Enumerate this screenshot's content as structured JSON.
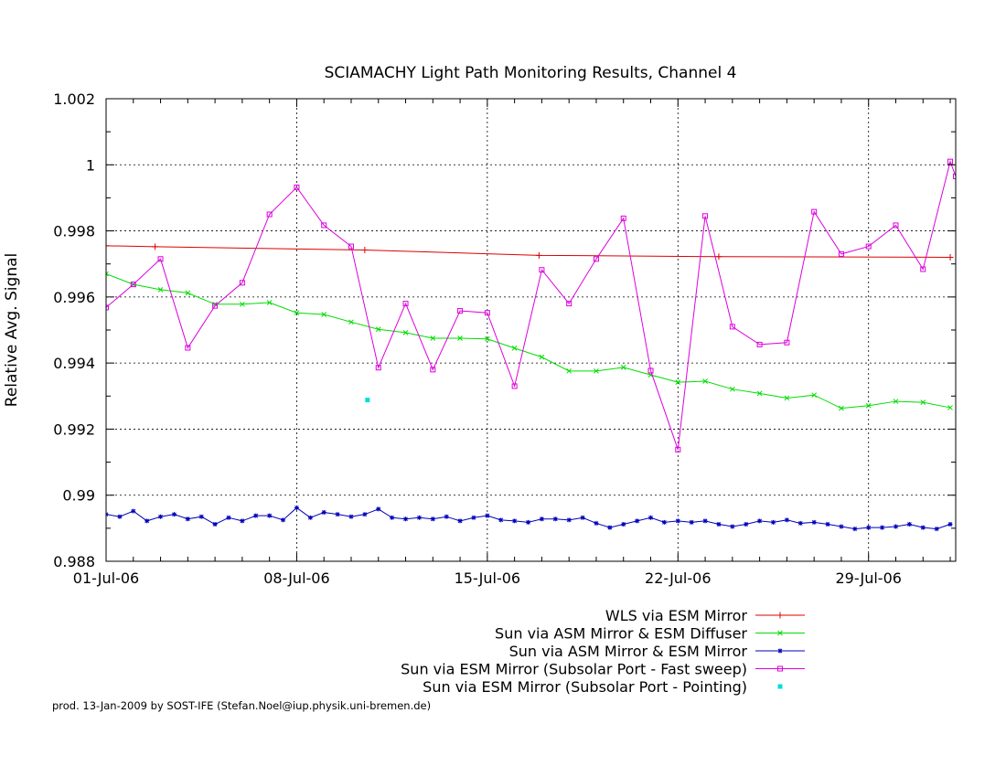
{
  "footer": "prod. 13-Jan-2009 by SOST-IFE (Stefan.Noel@iup.physik.uni-bremen.de)",
  "chart_data": {
    "type": "line",
    "title": "SCIAMACHY Light Path Monitoring Results, Channel 4",
    "xlabel": "",
    "ylabel": "Relative Avg. Signal",
    "x_unit": "day of July 2006 (1 = 01-Jul-06)",
    "xlim": [
      1,
      32.2
    ],
    "ylim": [
      0.988,
      1.002
    ],
    "grid": true,
    "legend_position": "below-plot-right",
    "x_ticks": [
      {
        "value": 1,
        "label": "01-Jul-06"
      },
      {
        "value": 8,
        "label": "08-Jul-06"
      },
      {
        "value": 15,
        "label": "15-Jul-06"
      },
      {
        "value": 22,
        "label": "22-Jul-06"
      },
      {
        "value": 29,
        "label": "29-Jul-06"
      }
    ],
    "y_ticks": [
      {
        "value": 0.988,
        "label": "0.988"
      },
      {
        "value": 0.99,
        "label": "0.99"
      },
      {
        "value": 0.992,
        "label": "0.992"
      },
      {
        "value": 0.994,
        "label": "0.994"
      },
      {
        "value": 0.996,
        "label": "0.996"
      },
      {
        "value": 0.998,
        "label": "0.998"
      },
      {
        "value": 1.0,
        "label": "1"
      },
      {
        "value": 1.002,
        "label": "1.002"
      }
    ],
    "series": [
      {
        "name": "WLS via ESM Mirror",
        "color": "#dd0000",
        "marker": "plus",
        "x": [
          1,
          2.8,
          10.5,
          16.9,
          23.5,
          32.0
        ],
        "y": [
          0.99755,
          0.99752,
          0.99742,
          0.99726,
          0.99722,
          0.9972
        ]
      },
      {
        "name": "Sun via ASM Mirror & ESM Diffuser",
        "color": "#00dd00",
        "marker": "cross",
        "x": [
          1,
          2,
          3,
          4,
          5,
          6,
          7,
          8,
          9,
          10,
          11,
          12,
          13,
          14,
          15,
          16,
          17,
          18,
          19,
          20,
          21,
          22,
          23,
          24,
          25,
          26,
          27,
          28,
          29,
          30,
          31,
          32
        ],
        "y": [
          0.9967,
          0.99638,
          0.99622,
          0.99612,
          0.99578,
          0.99578,
          0.99583,
          0.99552,
          0.99547,
          0.99524,
          0.99502,
          0.99492,
          0.99475,
          0.99475,
          0.99473,
          0.99445,
          0.99418,
          0.99376,
          0.99376,
          0.99387,
          0.99364,
          0.99342,
          0.99345,
          0.99321,
          0.99308,
          0.99294,
          0.99303,
          0.99263,
          0.99271,
          0.99284,
          0.99281,
          0.99265
        ]
      },
      {
        "name": "Sun via ASM Mirror & ESM Mirror",
        "color": "#0000bb",
        "marker": "star",
        "x": [
          1,
          1.5,
          2,
          2.5,
          3,
          3.5,
          4,
          4.5,
          5,
          5.5,
          6,
          6.5,
          7,
          7.5,
          8,
          8.5,
          9,
          9.5,
          10,
          10.5,
          11,
          11.5,
          12,
          12.5,
          13,
          13.5,
          14,
          14.5,
          15,
          15.5,
          16,
          16.5,
          17,
          17.5,
          18,
          18.5,
          19,
          19.5,
          20,
          20.5,
          21,
          21.5,
          22,
          22.5,
          23,
          23.5,
          24,
          24.5,
          25,
          25.5,
          26,
          26.5,
          27,
          27.5,
          28,
          28.5,
          29,
          29.5,
          30,
          30.5,
          31,
          31.5,
          32
        ],
        "y": [
          0.98942,
          0.98935,
          0.98952,
          0.98922,
          0.98935,
          0.98942,
          0.98928,
          0.98935,
          0.98912,
          0.98932,
          0.98922,
          0.98938,
          0.98938,
          0.98925,
          0.98962,
          0.98932,
          0.98948,
          0.98942,
          0.98935,
          0.98942,
          0.98958,
          0.98932,
          0.98928,
          0.98932,
          0.98928,
          0.98935,
          0.98922,
          0.98932,
          0.98938,
          0.98925,
          0.98922,
          0.98918,
          0.98928,
          0.98928,
          0.98925,
          0.98932,
          0.98915,
          0.98902,
          0.98912,
          0.98922,
          0.98932,
          0.98918,
          0.98922,
          0.98918,
          0.98922,
          0.98912,
          0.98905,
          0.98912,
          0.98922,
          0.98918,
          0.98925,
          0.98915,
          0.98918,
          0.98912,
          0.98905,
          0.98898,
          0.98902,
          0.98902,
          0.98905,
          0.98912,
          0.98902,
          0.98898,
          0.98912
        ]
      },
      {
        "name": "Sun via ESM Mirror (Subsolar Port - Fast sweep)",
        "color": "#dd00dd",
        "marker": "square",
        "x": [
          1,
          2,
          3,
          4,
          5,
          6,
          7,
          8,
          9,
          10,
          11,
          12,
          13,
          14,
          15,
          16,
          17,
          18,
          19,
          20,
          21,
          22,
          23,
          24,
          25,
          26,
          27,
          28,
          29,
          30,
          31,
          32,
          32.2
        ],
        "y": [
          0.99568,
          0.99638,
          0.99715,
          0.99446,
          0.99573,
          0.99643,
          0.9985,
          0.99932,
          0.99817,
          0.99753,
          0.99386,
          0.9958,
          0.9938,
          0.99558,
          0.99552,
          0.9933,
          0.99682,
          0.9958,
          0.99715,
          0.99838,
          0.99377,
          0.99138,
          0.99845,
          0.9951,
          0.99456,
          0.99462,
          0.99858,
          0.9973,
          0.99753,
          0.99817,
          0.99684,
          1.0001,
          0.99965
        ]
      },
      {
        "name": "Sun via ESM Mirror (Subsolar Port - Pointing)",
        "color": "#00dddd",
        "marker": "dot",
        "x": [
          10.6
        ],
        "y": [
          0.99288
        ]
      }
    ]
  }
}
